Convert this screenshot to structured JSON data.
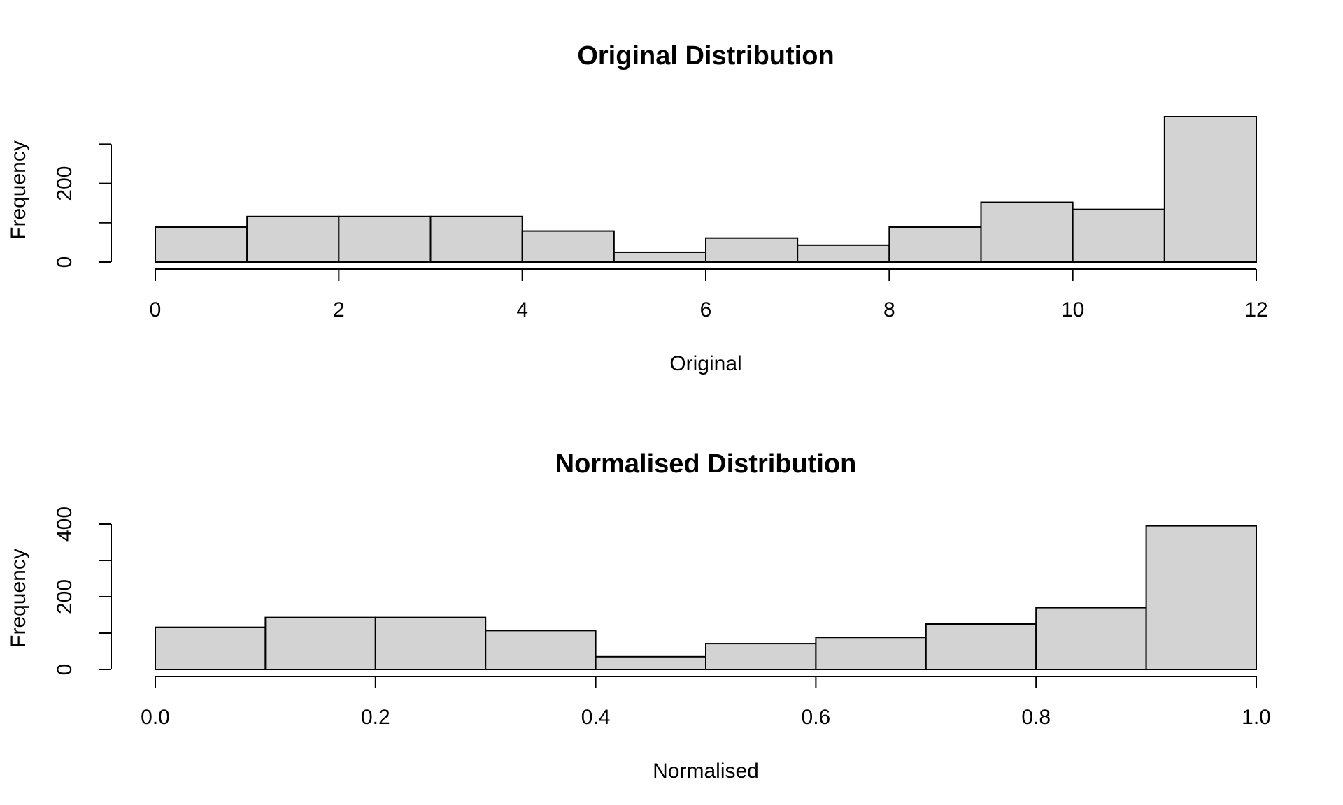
{
  "colors": {
    "bar_fill": "#d3d3d3",
    "bar_stroke": "#000000",
    "background": "#ffffff"
  },
  "chart_data": [
    {
      "type": "bar",
      "title": "Original Distribution",
      "xlabel": "Original",
      "ylabel": "Frequency",
      "bin_edges": [
        0,
        1,
        2,
        3,
        4,
        5,
        6,
        7,
        8,
        9,
        10,
        11,
        12
      ],
      "values": [
        89,
        116,
        116,
        116,
        79,
        25,
        61,
        43,
        89,
        152,
        134,
        370
      ],
      "xlim": [
        0,
        12
      ],
      "ylim": [
        0,
        370
      ],
      "x_ticks": [
        0,
        2,
        4,
        6,
        8,
        10,
        12
      ],
      "x_tick_labels": [
        "0",
        "2",
        "4",
        "6",
        "8",
        "10",
        "12"
      ],
      "y_ticks": [
        0,
        100,
        200,
        300
      ],
      "y_tick_labels": [
        "0",
        "",
        "200",
        ""
      ],
      "grid": false
    },
    {
      "type": "bar",
      "title": "Normalised Distribution",
      "xlabel": "Normalised",
      "ylabel": "Frequency",
      "bin_edges": [
        0.0,
        0.1,
        0.2,
        0.3,
        0.4,
        0.5,
        0.6,
        0.7,
        0.8,
        0.9,
        1.0
      ],
      "values": [
        116,
        143,
        143,
        107,
        35,
        71,
        88,
        125,
        170,
        395
      ],
      "xlim": [
        0,
        1
      ],
      "ylim": [
        0,
        400
      ],
      "x_ticks": [
        0.0,
        0.2,
        0.4,
        0.6,
        0.8,
        1.0
      ],
      "x_tick_labels": [
        "0.0",
        "0.2",
        "0.4",
        "0.6",
        "0.8",
        "1.0"
      ],
      "y_ticks": [
        0,
        100,
        200,
        300,
        400
      ],
      "y_tick_labels": [
        "0",
        "",
        "200",
        "",
        "400"
      ],
      "grid": false
    }
  ]
}
